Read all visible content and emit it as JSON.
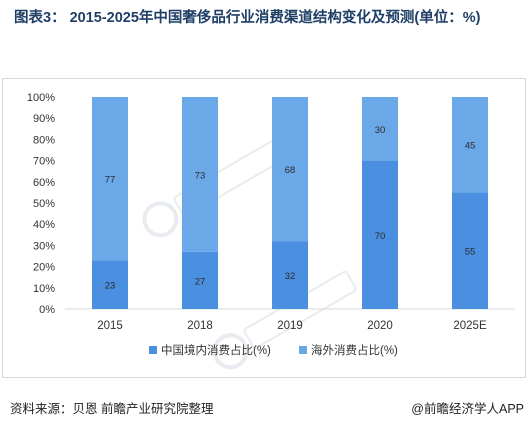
{
  "title": "图表3： 2015-2025年中国奢侈品行业消费渠道结构变化及预测(单位：%)",
  "source": "资料来源：贝恩 前瞻产业研究院整理",
  "brand": "@前瞻经济学人APP",
  "colors": {
    "domestic": "#4a8fe0",
    "overseas": "#6ba8e8",
    "axis_text": "#333333",
    "grid": "#d9d9d9"
  },
  "chart_data": {
    "type": "bar",
    "stacked": true,
    "categories": [
      "2015",
      "2018",
      "2019",
      "2020",
      "2025E"
    ],
    "series": [
      {
        "name": "中国境内消费占比(%)",
        "values": [
          23,
          27,
          32,
          70,
          55
        ]
      },
      {
        "name": "海外消费占比(%)",
        "values": [
          77,
          73,
          68,
          30,
          45
        ]
      }
    ],
    "ylim": [
      0,
      100
    ],
    "yticks": [
      "0%",
      "10%",
      "20%",
      "30%",
      "40%",
      "50%",
      "60%",
      "70%",
      "80%",
      "90%",
      "100%"
    ],
    "legend_position": "bottom"
  }
}
